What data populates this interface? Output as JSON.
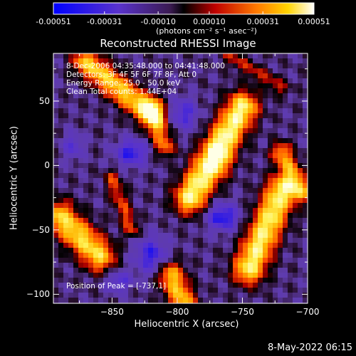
{
  "colorbar": {
    "tick_labels": [
      "-0.00051",
      "-0.00031",
      "-0.00010",
      "0.00010",
      "0.00031",
      "0.00051"
    ],
    "tick_values": [
      -0.00051,
      -0.00031,
      -0.0001,
      0.0001,
      0.00031,
      0.00051
    ],
    "range": [
      -0.00051,
      0.00051
    ],
    "unit_label": "(photons cm⁻² s⁻¹ asec⁻²)"
  },
  "chart_data": {
    "type": "heatmap",
    "title": "Reconstructed RHESSI Image",
    "xlabel": "Heliocentric X (arcsec)",
    "ylabel": "Heliocentric Y (arcsec)",
    "xlim": [
      -895,
      -700
    ],
    "ylim": [
      -107,
      87
    ],
    "x_ticks": [
      -850,
      -800,
      -750,
      -700
    ],
    "x_tick_labels": [
      "−850",
      "−800",
      "−750",
      "−700"
    ],
    "y_ticks": [
      -100,
      -50,
      0,
      50
    ],
    "y_tick_labels": [
      "−100",
      "−50",
      "0",
      "50"
    ],
    "annotations": [
      "8-Dec-2006 04:35:48.000 to 04:41:48.000",
      "Detectors: 3F 4F 5F 6F 7F 8F, Att 0",
      "Energy Range: 25.0 - 50.0 keV",
      "Clean      Total counts: 1.44E+04"
    ],
    "peak_label": "Position of Peak = [-737,1]",
    "grid": false,
    "colormap": "blue-purple-black-red-yellow-white"
  },
  "timestamp": "8-May-2022 06:15"
}
